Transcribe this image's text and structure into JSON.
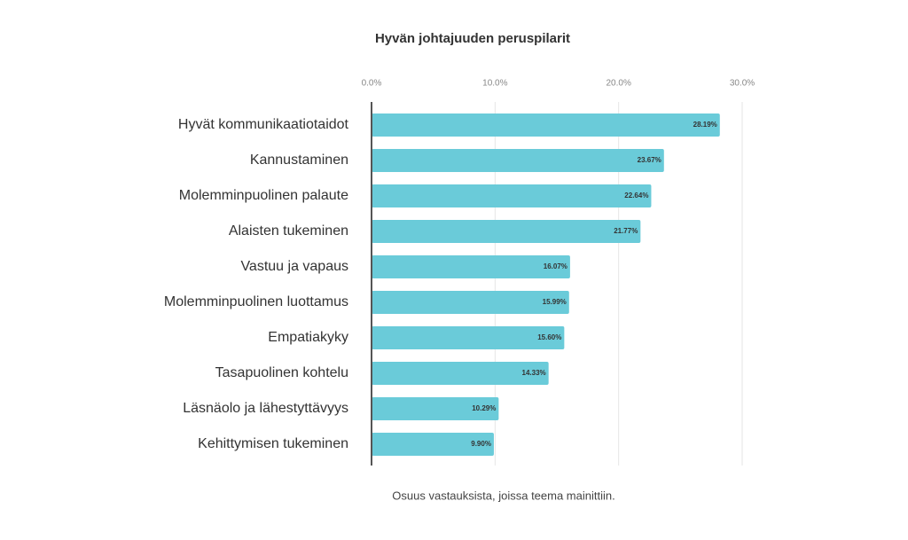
{
  "chart_data": {
    "type": "bar",
    "orientation": "horizontal",
    "title": "Hyvän johtajuuden peruspilarit",
    "xlabel": "Osuus vastauksista, joissa teema mainittiin.",
    "categories": [
      "Hyvät kommunikaatiotaidot",
      "Kannustaminen",
      "Molemminpuolinen palaute",
      "Alaisten tukeminen",
      "Vastuu ja vapaus",
      "Molemminpuolinen luottamus",
      "Empatiakyky",
      "Tasapuolinen kohtelu",
      "Läsnäolo ja lähestyttävyys",
      "Kehittymisen tukeminen"
    ],
    "values": [
      28.19,
      23.67,
      22.64,
      21.77,
      16.07,
      15.99,
      15.6,
      14.33,
      10.29,
      9.9
    ],
    "value_labels": [
      "28.19%",
      "23.67%",
      "22.64%",
      "21.77%",
      "16.07%",
      "15.99%",
      "15.60%",
      "14.33%",
      "10.29%",
      "9.90%"
    ],
    "color": "#6acbd9",
    "xlim": [
      0,
      30
    ],
    "xticks": [
      {
        "value": 0,
        "label": "0.0%"
      },
      {
        "value": 10,
        "label": "10.0%"
      },
      {
        "value": 20,
        "label": "20.0%"
      },
      {
        "value": 30,
        "label": "30.0%"
      }
    ],
    "grid": true
  }
}
